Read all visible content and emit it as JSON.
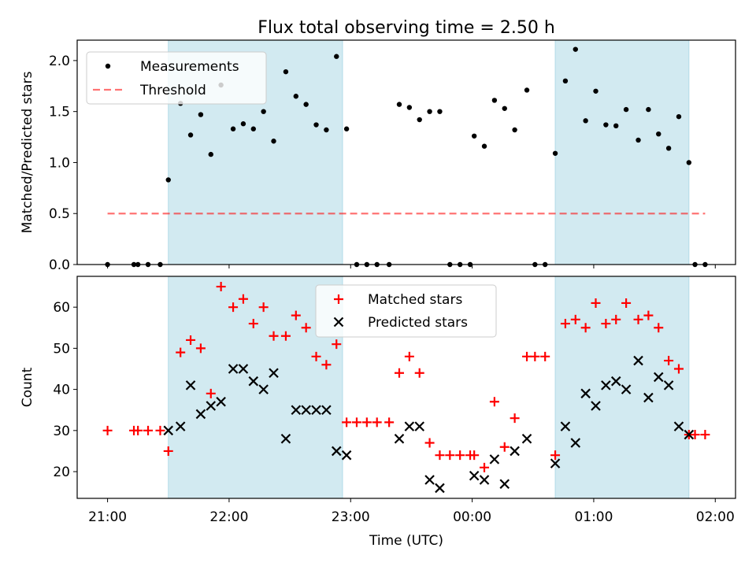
{
  "title": "Flux total observing time = 2.50 h",
  "colors": {
    "shade": "#add8e6",
    "measurements": "#000000",
    "threshold": "#ff0000",
    "matched": "#ff0000",
    "predicted": "#000000"
  },
  "chart_data": [
    {
      "type": "scatter",
      "ylabel": "Matched/Predicted stars",
      "ylim": [
        0,
        2.2
      ],
      "yticks": [
        "0.0",
        "0.5",
        "1.0",
        "1.5",
        "2.0"
      ],
      "xlim": [
        "20:45",
        "02:10"
      ],
      "shaded_intervals": [
        [
          "21:30",
          "22:56"
        ],
        [
          "00:41",
          "01:47"
        ]
      ],
      "legend": {
        "placement": "top-left",
        "entries": [
          "Measurements",
          "Threshold"
        ]
      },
      "threshold": {
        "name": "Threshold",
        "value": 0.5,
        "x": [
          "21:00",
          "01:55"
        ]
      },
      "series": [
        {
          "name": "Measurements",
          "points": [
            [
              "21:00",
              0
            ],
            [
              "21:13",
              0
            ],
            [
              "21:15",
              0
            ],
            [
              "21:20",
              0
            ],
            [
              "21:26",
              0
            ],
            [
              "21:30",
              0.83
            ],
            [
              "21:36",
              1.58
            ],
            [
              "21:41",
              1.27
            ],
            [
              "21:46",
              1.47
            ],
            [
              "21:51",
              1.08
            ],
            [
              "21:56",
              1.76
            ],
            [
              "22:02",
              1.33
            ],
            [
              "22:07",
              1.38
            ],
            [
              "22:12",
              1.33
            ],
            [
              "22:17",
              1.5
            ],
            [
              "22:22",
              1.21
            ],
            [
              "22:28",
              1.89
            ],
            [
              "22:33",
              1.65
            ],
            [
              "22:38",
              1.57
            ],
            [
              "22:43",
              1.37
            ],
            [
              "22:48",
              1.32
            ],
            [
              "22:53",
              2.04
            ],
            [
              "22:58",
              1.33
            ],
            [
              "23:03",
              0
            ],
            [
              "23:08",
              0
            ],
            [
              "23:13",
              0
            ],
            [
              "23:19",
              0
            ],
            [
              "23:24",
              1.57
            ],
            [
              "23:29",
              1.54
            ],
            [
              "23:34",
              1.42
            ],
            [
              "23:39",
              1.5
            ],
            [
              "23:44",
              1.5
            ],
            [
              "23:49",
              0
            ],
            [
              "23:54",
              0
            ],
            [
              "23:59",
              0
            ],
            [
              "00:01",
              1.26
            ],
            [
              "00:06",
              1.16
            ],
            [
              "00:11",
              1.61
            ],
            [
              "00:16",
              1.53
            ],
            [
              "00:21",
              1.32
            ],
            [
              "00:27",
              1.71
            ],
            [
              "00:31",
              0
            ],
            [
              "00:36",
              0
            ],
            [
              "00:41",
              1.09
            ],
            [
              "00:46",
              1.8
            ],
            [
              "00:51",
              2.11
            ],
            [
              "00:56",
              1.41
            ],
            [
              "01:01",
              1.7
            ],
            [
              "01:06",
              1.37
            ],
            [
              "01:11",
              1.36
            ],
            [
              "01:16",
              1.52
            ],
            [
              "01:22",
              1.22
            ],
            [
              "01:27",
              1.52
            ],
            [
              "01:32",
              1.28
            ],
            [
              "01:37",
              1.14
            ],
            [
              "01:42",
              1.45
            ],
            [
              "01:47",
              1.0
            ],
            [
              "01:50",
              0
            ],
            [
              "01:55",
              0
            ]
          ]
        }
      ]
    },
    {
      "type": "scatter",
      "xlabel": "Time (UTC)",
      "ylabel": "Count",
      "ylim": [
        13.5,
        67.5
      ],
      "yticks": [
        "20",
        "30",
        "40",
        "50",
        "60"
      ],
      "xlim": [
        "20:45",
        "02:10"
      ],
      "xticks": [
        "21:00",
        "22:00",
        "23:00",
        "00:00",
        "01:00",
        "02:00"
      ],
      "shaded_intervals": [
        [
          "21:30",
          "22:56"
        ],
        [
          "00:41",
          "01:47"
        ]
      ],
      "legend": {
        "placement": "top-center",
        "entries": [
          "Matched stars",
          "Predicted stars"
        ]
      },
      "series": [
        {
          "name": "Matched stars",
          "marker": "plus",
          "points": [
            [
              "21:00",
              30
            ],
            [
              "21:13",
              30
            ],
            [
              "21:15",
              30
            ],
            [
              "21:20",
              30
            ],
            [
              "21:26",
              30
            ],
            [
              "21:30",
              25
            ],
            [
              "21:36",
              49
            ],
            [
              "21:41",
              52
            ],
            [
              "21:46",
              50
            ],
            [
              "21:51",
              39
            ],
            [
              "21:56",
              65
            ],
            [
              "22:02",
              60
            ],
            [
              "22:07",
              62
            ],
            [
              "22:12",
              56
            ],
            [
              "22:17",
              60
            ],
            [
              "22:22",
              53
            ],
            [
              "22:28",
              53
            ],
            [
              "22:33",
              58
            ],
            [
              "22:38",
              55
            ],
            [
              "22:43",
              48
            ],
            [
              "22:48",
              46
            ],
            [
              "22:53",
              51
            ],
            [
              "22:58",
              32
            ],
            [
              "23:03",
              32
            ],
            [
              "23:08",
              32
            ],
            [
              "23:13",
              32
            ],
            [
              "23:19",
              32
            ],
            [
              "23:24",
              44
            ],
            [
              "23:29",
              48
            ],
            [
              "23:34",
              44
            ],
            [
              "23:39",
              27
            ],
            [
              "23:44",
              24
            ],
            [
              "23:49",
              24
            ],
            [
              "23:54",
              24
            ],
            [
              "23:59",
              24
            ],
            [
              "00:01",
              24
            ],
            [
              "00:06",
              21
            ],
            [
              "00:11",
              37
            ],
            [
              "00:16",
              26
            ],
            [
              "00:21",
              33
            ],
            [
              "00:27",
              48
            ],
            [
              "00:31",
              48
            ],
            [
              "00:36",
              48
            ],
            [
              "00:41",
              24
            ],
            [
              "00:46",
              56
            ],
            [
              "00:51",
              57
            ],
            [
              "00:56",
              55
            ],
            [
              "01:01",
              61
            ],
            [
              "01:06",
              56
            ],
            [
              "01:11",
              57
            ],
            [
              "01:16",
              61
            ],
            [
              "01:22",
              57
            ],
            [
              "01:27",
              58
            ],
            [
              "01:32",
              55
            ],
            [
              "01:37",
              47
            ],
            [
              "01:42",
              45
            ],
            [
              "01:47",
              29
            ],
            [
              "01:50",
              29
            ],
            [
              "01:55",
              29
            ]
          ]
        },
        {
          "name": "Predicted stars",
          "marker": "x",
          "points": [
            [
              "21:30",
              30
            ],
            [
              "21:36",
              31
            ],
            [
              "21:41",
              41
            ],
            [
              "21:46",
              34
            ],
            [
              "21:51",
              36
            ],
            [
              "21:56",
              37
            ],
            [
              "22:02",
              45
            ],
            [
              "22:07",
              45
            ],
            [
              "22:12",
              42
            ],
            [
              "22:17",
              40
            ],
            [
              "22:22",
              44
            ],
            [
              "22:28",
              28
            ],
            [
              "22:33",
              35
            ],
            [
              "22:38",
              35
            ],
            [
              "22:43",
              35
            ],
            [
              "22:48",
              35
            ],
            [
              "22:53",
              25
            ],
            [
              "22:58",
              24
            ],
            [
              "23:24",
              28
            ],
            [
              "23:29",
              31
            ],
            [
              "23:34",
              31
            ],
            [
              "23:39",
              18
            ],
            [
              "23:44",
              16
            ],
            [
              "00:01",
              19
            ],
            [
              "00:06",
              18
            ],
            [
              "00:11",
              23
            ],
            [
              "00:16",
              17
            ],
            [
              "00:21",
              25
            ],
            [
              "00:27",
              28
            ],
            [
              "00:41",
              22
            ],
            [
              "00:46",
              31
            ],
            [
              "00:51",
              27
            ],
            [
              "00:56",
              39
            ],
            [
              "01:01",
              36
            ],
            [
              "01:06",
              41
            ],
            [
              "01:11",
              42
            ],
            [
              "01:16",
              40
            ],
            [
              "01:22",
              47
            ],
            [
              "01:27",
              38
            ],
            [
              "01:32",
              43
            ],
            [
              "01:37",
              41
            ],
            [
              "01:42",
              31
            ],
            [
              "01:47",
              29
            ]
          ]
        }
      ]
    }
  ]
}
